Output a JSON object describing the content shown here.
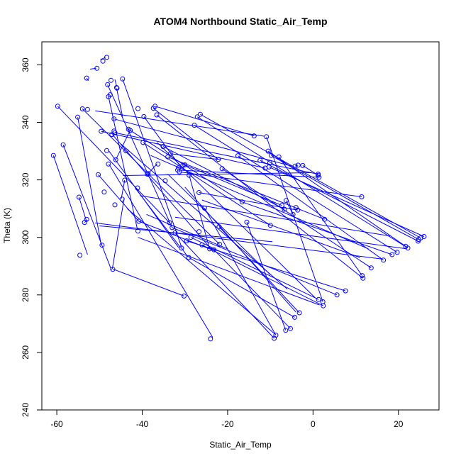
{
  "chart_data": {
    "type": "scatter",
    "title": "ATOM4 Northbound Static_Air_Temp",
    "xlabel": "Static_Air_Temp",
    "ylabel": "Theta (K)",
    "xlim": [
      -63.5,
      29.5
    ],
    "ylim": [
      240,
      368
    ],
    "xticks": [
      -60,
      -40,
      -20,
      0,
      20
    ],
    "yticks": [
      240,
      260,
      280,
      300,
      320,
      340,
      360
    ],
    "grid": false,
    "series": [
      {
        "color": "#0000ff",
        "points": [
          [
            -60.8,
            328.5
          ],
          [
            -58.5,
            332.2
          ],
          [
            -59.8,
            345.6
          ],
          [
            -55.1,
            341.8
          ],
          [
            -54.8,
            314.0
          ],
          [
            -54.6,
            293.8
          ],
          [
            -54.0,
            344.7
          ],
          [
            -53.5,
            305.2
          ],
          [
            -53.0,
            355.4
          ],
          [
            -53.0,
            306.3
          ],
          [
            -52.8,
            344.5
          ],
          [
            -50.6,
            358.8
          ],
          [
            -50.3,
            321.8
          ],
          [
            -49.6,
            336.9
          ],
          [
            -49.4,
            297.3
          ],
          [
            -49.2,
            361.3
          ],
          [
            -48.9,
            315.8
          ],
          [
            -48.3,
            362.6
          ],
          [
            -48.3,
            330.2
          ],
          [
            -48.1,
            353.1
          ],
          [
            -47.9,
            325.5
          ],
          [
            -47.9,
            348.9
          ],
          [
            -47.5,
            349.6
          ],
          [
            -47.3,
            354.6
          ],
          [
            -47.1,
            335.8
          ],
          [
            -46.9,
            288.9
          ],
          [
            -46.6,
            341.2
          ],
          [
            -46.6,
            337.0
          ],
          [
            -46.4,
            336.4
          ],
          [
            -46.4,
            311.3
          ],
          [
            -46.2,
            327.0
          ],
          [
            -46.0,
            352.1
          ],
          [
            -45.9,
            351.9
          ],
          [
            -44.7,
            313.3
          ],
          [
            -44.6,
            355.1
          ],
          [
            -44.1,
            319.9
          ],
          [
            -43.8,
            330.1
          ],
          [
            -43.2,
            337.6
          ],
          [
            -42.8,
            337.2
          ],
          [
            -41.1,
            317.2
          ],
          [
            -41.0,
            344.8
          ],
          [
            -41.0,
            302.2
          ],
          [
            -40.8,
            305.6
          ],
          [
            -39.8,
            333.0
          ],
          [
            -39.6,
            342.0
          ],
          [
            -38.8,
            322.0
          ],
          [
            -38.6,
            322.2
          ],
          [
            -37.4,
            344.9
          ],
          [
            -37.0,
            345.6
          ],
          [
            -36.6,
            342.6
          ],
          [
            -36.3,
            325.5
          ],
          [
            -35.1,
            331.6
          ],
          [
            -34.6,
            319.7
          ],
          [
            -34.0,
            328.0
          ],
          [
            -33.6,
            305.1
          ],
          [
            -33.4,
            329.1
          ],
          [
            -33.0,
            303.4
          ],
          [
            -32.3,
            301.6
          ],
          [
            -31.7,
            323.4
          ],
          [
            -31.5,
            324.2
          ],
          [
            -31.3,
            322.8
          ],
          [
            -30.8,
            296.3
          ],
          [
            -30.5,
            325.0
          ],
          [
            -30.2,
            279.6
          ],
          [
            -30.0,
            325.2
          ],
          [
            -29.6,
            298.8
          ],
          [
            -29.1,
            293.0
          ],
          [
            -29.0,
            321.6
          ],
          [
            -28.6,
            300.0
          ],
          [
            -27.8,
            339.0
          ],
          [
            -27.1,
            341.9
          ],
          [
            -26.7,
            315.6
          ],
          [
            -26.7,
            302.0
          ],
          [
            -26.4,
            342.8
          ],
          [
            -26.0,
            297.4
          ],
          [
            -25.4,
            310.2
          ],
          [
            -24.2,
            296.0
          ],
          [
            -24.0,
            264.7
          ],
          [
            -23.2,
            295.7
          ],
          [
            -22.2,
            327.1
          ],
          [
            -22.0,
            303.7
          ],
          [
            -21.9,
            297.6
          ],
          [
            -21.3,
            323.9
          ],
          [
            -17.6,
            328.4
          ],
          [
            -16.6,
            312.3
          ],
          [
            -15.5,
            305.3
          ],
          [
            -13.8,
            335.3
          ],
          [
            -12.4,
            326.8
          ],
          [
            -11.2,
            324.1
          ],
          [
            -10.9,
            335.0
          ],
          [
            -10.5,
            330.0
          ],
          [
            -10.3,
            324.5
          ],
          [
            -10.1,
            326.0
          ],
          [
            -10.0,
            304.2
          ],
          [
            -9.8,
            328.5
          ],
          [
            -9.1,
            264.9
          ],
          [
            -8.7,
            266.0
          ],
          [
            -8.0,
            328.0
          ],
          [
            -7.3,
            311.1
          ],
          [
            -6.7,
            309.8
          ],
          [
            -6.4,
            267.7
          ],
          [
            -6.3,
            312.8
          ],
          [
            -5.3,
            268.3
          ],
          [
            -4.7,
            308.0
          ],
          [
            -4.3,
            272.2
          ],
          [
            -4.2,
            324.8
          ],
          [
            -4.0,
            310.4
          ],
          [
            -3.6,
            309.5
          ],
          [
            -3.5,
            325.1
          ],
          [
            -3.2,
            273.8
          ],
          [
            -2.4,
            325.0
          ],
          [
            1.2,
            322.0
          ],
          [
            1.2,
            321.6
          ],
          [
            1.3,
            278.4
          ],
          [
            1.4,
            320.9
          ],
          [
            2.3,
            277.6
          ],
          [
            2.4,
            276.2
          ],
          [
            2.7,
            306.3
          ],
          [
            5.6,
            280.0
          ],
          [
            7.6,
            281.4
          ],
          [
            11.4,
            314.1
          ],
          [
            11.5,
            286.7
          ],
          [
            11.7,
            285.8
          ],
          [
            13.6,
            289.4
          ],
          [
            16.5,
            292.1
          ],
          [
            18.5,
            294.0
          ],
          [
            19.7,
            294.8
          ],
          [
            21.7,
            296.9
          ],
          [
            22.2,
            296.3
          ],
          [
            24.6,
            298.7
          ],
          [
            24.7,
            299.3
          ],
          [
            25.2,
            299.8
          ],
          [
            26.0,
            300.3
          ]
        ],
        "segments": [
          [
            -60.8,
            328.5,
            -52.8,
            294.0
          ],
          [
            -58.5,
            332.2,
            -47.2,
            288.6
          ],
          [
            -55.1,
            341.8,
            -49.6,
            297.4
          ],
          [
            -54.8,
            314.0,
            -53.1,
            305.9
          ],
          [
            -53.0,
            355.4,
            -52.6,
            354.5
          ],
          [
            -52.2,
            358.5,
            -50.8,
            358.8
          ],
          [
            -53.5,
            305.2,
            -52.8,
            306.0
          ],
          [
            -49.8,
            361.8,
            -48.6,
            362.6
          ],
          [
            -47.9,
            349.0,
            -41.1,
            302.6
          ],
          [
            -48.1,
            353.1,
            -33.0,
            303.4
          ],
          [
            -46.4,
            354.9,
            -46.0,
            352.6
          ],
          [
            -46.0,
            351.8,
            -44.6,
            342.0
          ],
          [
            -44.6,
            355.1,
            -30.7,
            296.3
          ],
          [
            -47.8,
            325.5,
            -23.5,
            265.2
          ],
          [
            -47.9,
            330.3,
            -31.5,
            296.5
          ],
          [
            -47.0,
            335.8,
            -23.9,
            296.0
          ],
          [
            -42.8,
            337.2,
            -46.2,
            327.0
          ],
          [
            -44.1,
            319.9,
            -44.9,
            313.5
          ],
          [
            -44.2,
            313.8,
            -47.0,
            289.1
          ],
          [
            -41.5,
            316.9,
            -31.0,
            296.4
          ],
          [
            -40.8,
            305.6,
            -23.3,
            295.5
          ],
          [
            -39.6,
            342.0,
            -31.2,
            325.0
          ],
          [
            -38.6,
            322.2,
            -36.5,
            325.6
          ],
          [
            -33.4,
            329.1,
            -21.5,
            327.0
          ],
          [
            -30.2,
            279.6,
            -46.9,
            289.0
          ],
          [
            -30.8,
            296.3,
            -29.3,
            293.2
          ],
          [
            -29.0,
            321.6,
            -24.2,
            296.0
          ],
          [
            -50.3,
            321.8,
            -40.8,
            305.6
          ],
          [
            -59.8,
            345.6,
            -33.6,
            305.1
          ],
          [
            -54.0,
            344.7,
            -21.9,
            297.6
          ],
          [
            -51.0,
            344.0,
            -11.5,
            335.2
          ],
          [
            -49.6,
            336.9,
            -11.2,
            324.1
          ],
          [
            -46.6,
            341.2,
            -4.5,
            324.6
          ],
          [
            -46.4,
            336.4,
            1.2,
            322.0
          ],
          [
            -43.2,
            337.6,
            -16.6,
            312.3
          ],
          [
            -39.8,
            333.0,
            -10.0,
            304.2
          ],
          [
            -37.4,
            344.9,
            -22.2,
            327.1
          ],
          [
            -37.0,
            345.6,
            -13.8,
            335.3
          ],
          [
            -36.6,
            342.6,
            11.7,
            285.8
          ],
          [
            -35.1,
            331.6,
            -6.7,
            309.8
          ],
          [
            -34.0,
            328.0,
            2.7,
            306.3
          ],
          [
            -33.0,
            303.4,
            5.6,
            280.0
          ],
          [
            -32.3,
            301.6,
            -9.1,
            264.9
          ],
          [
            -31.7,
            323.4,
            1.4,
            320.9
          ],
          [
            -31.3,
            322.8,
            11.4,
            314.1
          ],
          [
            -30.0,
            325.2,
            -7.3,
            311.1
          ],
          [
            -29.6,
            298.8,
            7.6,
            281.4
          ],
          [
            -29.1,
            293.0,
            -4.3,
            272.2
          ],
          [
            -28.6,
            300.0,
            1.3,
            278.4
          ],
          [
            -27.8,
            339.0,
            19.7,
            294.8
          ],
          [
            -27.1,
            341.9,
            22.2,
            296.3
          ],
          [
            -26.7,
            315.6,
            -3.6,
            309.5
          ],
          [
            -26.4,
            342.8,
            25.2,
            299.8
          ],
          [
            -26.0,
            297.4,
            2.4,
            276.2
          ],
          [
            -25.4,
            310.2,
            -8.7,
            266.0
          ],
          [
            -23.2,
            295.7,
            -5.3,
            268.3
          ],
          [
            -22.0,
            303.7,
            -3.2,
            273.8
          ],
          [
            -21.3,
            323.9,
            13.6,
            289.4
          ],
          [
            -17.6,
            328.4,
            16.5,
            292.1
          ],
          [
            -16.6,
            312.3,
            18.5,
            294.0
          ],
          [
            -15.5,
            305.3,
            -6.4,
            267.7
          ],
          [
            -12.4,
            326.8,
            24.6,
            298.7
          ],
          [
            -10.9,
            335.0,
            2.3,
            277.6
          ],
          [
            -10.5,
            330.0,
            21.7,
            296.9
          ],
          [
            -10.3,
            324.5,
            26.0,
            300.3
          ],
          [
            -9.8,
            328.5,
            24.7,
            299.3
          ],
          [
            -8.0,
            328.0,
            11.5,
            286.7
          ],
          [
            -6.3,
            312.8,
            -4.7,
            308.0
          ],
          [
            -4.2,
            324.8,
            -3.5,
            325.1
          ],
          [
            -2.4,
            325.0,
            1.2,
            321.6
          ],
          [
            -32.3,
            307.0,
            22.0,
            296.0
          ],
          [
            -51.0,
            305.0,
            16.0,
            292.5
          ],
          [
            -44.5,
            321.5,
            -0.5,
            322.5
          ],
          [
            -38.0,
            328.5,
            13.0,
            296.0
          ],
          [
            -50.0,
            304.0,
            -9.5,
            298.5
          ],
          [
            -36.5,
            333.0,
            0.5,
            279.0
          ],
          [
            -45.0,
            332.5,
            -6.0,
            282.0
          ],
          [
            -41.0,
            300.0,
            1.5,
            276.5
          ],
          [
            -40.5,
            314.5,
            18.0,
            300.5
          ],
          [
            -43.5,
            310.0,
            -9.0,
            266.5
          ],
          [
            -34.0,
            322.0,
            -10.0,
            287.0
          ],
          [
            -30.0,
            317.5,
            -4.0,
            274.0
          ],
          [
            -26.0,
            313.0,
            11.0,
            293.0
          ],
          [
            -39.0,
            308.0,
            -20.0,
            296.0
          ]
        ]
      }
    ]
  }
}
